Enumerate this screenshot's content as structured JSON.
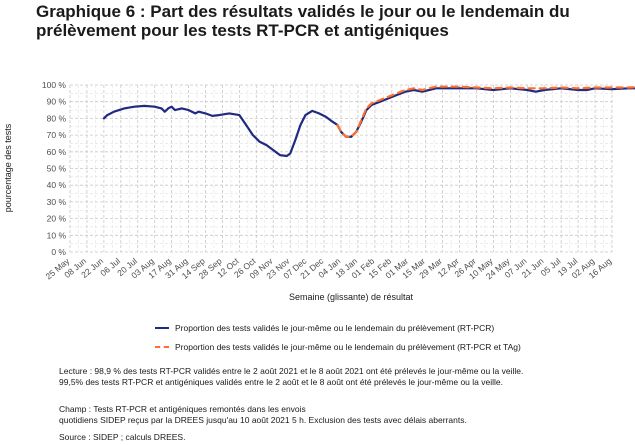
{
  "title": "Graphique 6 : Part des résultats validés le jour ou le lendemain du prélèvement pour les tests RT-PCR et antigéniques",
  "chart_data": {
    "type": "line",
    "xlabel": "Semaine (glissante) de résultat",
    "ylabel": "pourcentage des tests",
    "y_ticks": [
      "0 %",
      "10 %",
      "20 %",
      "30 %",
      "40 %",
      "50 %",
      "60 %",
      "70 %",
      "80 %",
      "90 %",
      "100 %"
    ],
    "ylim": [
      0,
      100
    ],
    "x_ticks": [
      "25 May",
      "08 Jun",
      "22 Jun",
      "06 Jul",
      "20 Jul",
      "03 Aug",
      "17 Aug",
      "31 Aug",
      "14 Sep",
      "28 Sep",
      "12 Oct",
      "26 Oct",
      "09 Nov",
      "23 Nov",
      "07 Dec",
      "21 Dec",
      "04 Jan",
      "18 Jan",
      "01 Feb",
      "15 Feb",
      "01 Mar",
      "15 Mar",
      "29 Mar",
      "12 Apr",
      "26 Apr",
      "10 May",
      "24 May",
      "07 Jun",
      "21 Jun",
      "05 Jul",
      "19 Jul",
      "02 Aug",
      "16 Aug"
    ],
    "grid": true,
    "legend_position": "bottom",
    "series": [
      {
        "name": "Proportion des tests validés le jour-même ou le lendemain du prélèvement (RT-PCR)",
        "color": "#1f2a80",
        "style": "solid",
        "points": [
          [
            2,
            80
          ],
          [
            2.2,
            82
          ],
          [
            2.6,
            84
          ],
          [
            3.2,
            86
          ],
          [
            3.8,
            87
          ],
          [
            4.4,
            87.5
          ],
          [
            5.0,
            87
          ],
          [
            5.4,
            86
          ],
          [
            5.6,
            84
          ],
          [
            5.8,
            86
          ],
          [
            6.0,
            87
          ],
          [
            6.2,
            85
          ],
          [
            6.6,
            86
          ],
          [
            7.0,
            85
          ],
          [
            7.4,
            83
          ],
          [
            7.6,
            84
          ],
          [
            8.0,
            83
          ],
          [
            8.4,
            81.5
          ],
          [
            8.8,
            82
          ],
          [
            9.4,
            83
          ],
          [
            10.0,
            82
          ],
          [
            10.4,
            76
          ],
          [
            10.8,
            70
          ],
          [
            11.2,
            66
          ],
          [
            11.6,
            64
          ],
          [
            12.0,
            61
          ],
          [
            12.4,
            58
          ],
          [
            12.8,
            57.5
          ],
          [
            13.0,
            59
          ],
          [
            13.3,
            67
          ],
          [
            13.6,
            76
          ],
          [
            13.9,
            82
          ],
          [
            14.3,
            84.5
          ],
          [
            14.7,
            83
          ],
          [
            15.1,
            81
          ],
          [
            15.5,
            78
          ],
          [
            15.8,
            76
          ],
          [
            16.0,
            72
          ],
          [
            16.3,
            69
          ],
          [
            16.6,
            69
          ],
          [
            16.9,
            72
          ],
          [
            17.2,
            78
          ],
          [
            17.5,
            85
          ],
          [
            17.8,
            88
          ],
          [
            18.3,
            90
          ],
          [
            18.8,
            92
          ],
          [
            19.3,
            94
          ],
          [
            19.8,
            96
          ],
          [
            20.3,
            97
          ],
          [
            20.8,
            96
          ],
          [
            21.2,
            97
          ],
          [
            21.6,
            98
          ],
          [
            22.2,
            98
          ],
          [
            23.0,
            98
          ],
          [
            24.0,
            98
          ],
          [
            25.0,
            97
          ],
          [
            26.0,
            98
          ],
          [
            27.0,
            97
          ],
          [
            27.5,
            96
          ],
          [
            28.0,
            97
          ],
          [
            29.0,
            98
          ],
          [
            30.0,
            97
          ],
          [
            30.5,
            97
          ],
          [
            31.0,
            98
          ],
          [
            32.0,
            97.5
          ],
          [
            33.0,
            98
          ],
          [
            34.0,
            98
          ],
          [
            35.0,
            98
          ],
          [
            36.0,
            98.5
          ],
          [
            37.0,
            98
          ],
          [
            38.0,
            98.5
          ],
          [
            39.0,
            98
          ],
          [
            40.0,
            98.5
          ],
          [
            41.0,
            98
          ]
        ]
      },
      {
        "name": "Proportion des tests validés le jour-même ou le lendemain du prélèvement (RT-PCR et TAg)",
        "color": "#ff6f2c",
        "style": "dashed",
        "points": [
          [
            15.8,
            76
          ],
          [
            16.0,
            72
          ],
          [
            16.3,
            69
          ],
          [
            16.6,
            69
          ],
          [
            16.9,
            72
          ],
          [
            17.2,
            79
          ],
          [
            17.5,
            86
          ],
          [
            17.8,
            89
          ],
          [
            18.3,
            91
          ],
          [
            18.8,
            93
          ],
          [
            19.3,
            95
          ],
          [
            19.8,
            97
          ],
          [
            20.3,
            98
          ],
          [
            20.8,
            97
          ],
          [
            21.2,
            98
          ],
          [
            21.6,
            99
          ],
          [
            22.2,
            99
          ],
          [
            23.0,
            99
          ],
          [
            24.0,
            98.5
          ],
          [
            25.0,
            98
          ],
          [
            26.0,
            98.5
          ],
          [
            27.0,
            98
          ],
          [
            28.0,
            98
          ],
          [
            29.0,
            98.5
          ],
          [
            30.0,
            98
          ],
          [
            31.0,
            98.5
          ],
          [
            32.0,
            98.5
          ],
          [
            33.0,
            98.5
          ],
          [
            34.0,
            99
          ],
          [
            35.0,
            99
          ],
          [
            36.0,
            99
          ],
          [
            37.0,
            99
          ],
          [
            38.0,
            99.5
          ],
          [
            39.0,
            99
          ],
          [
            40.0,
            99.5
          ],
          [
            41.0,
            99.5
          ]
        ]
      }
    ]
  },
  "notes": {
    "lecture_1": "Lecture : 98,9 % des tests RT-PCR validés entre le 2 août 2021 et le 8 août 2021 ont été prélevés le jour-même ou la veille.",
    "lecture_2": "99,5% des tests RT-PCR et antigéniques validés entre le 2 août et le 8 août ont été prélevés le jour-même ou la veille.",
    "champ_1": "Champ : Tests RT-PCR et antigéniques remontés dans les envois",
    "champ_2": "quotidiens SIDEP reçus par la DREES jusqu'au 10 août 2021 5 h. Exclusion des tests avec délais aberrants.",
    "source": "Source : SIDEP ; calculs DREES."
  }
}
